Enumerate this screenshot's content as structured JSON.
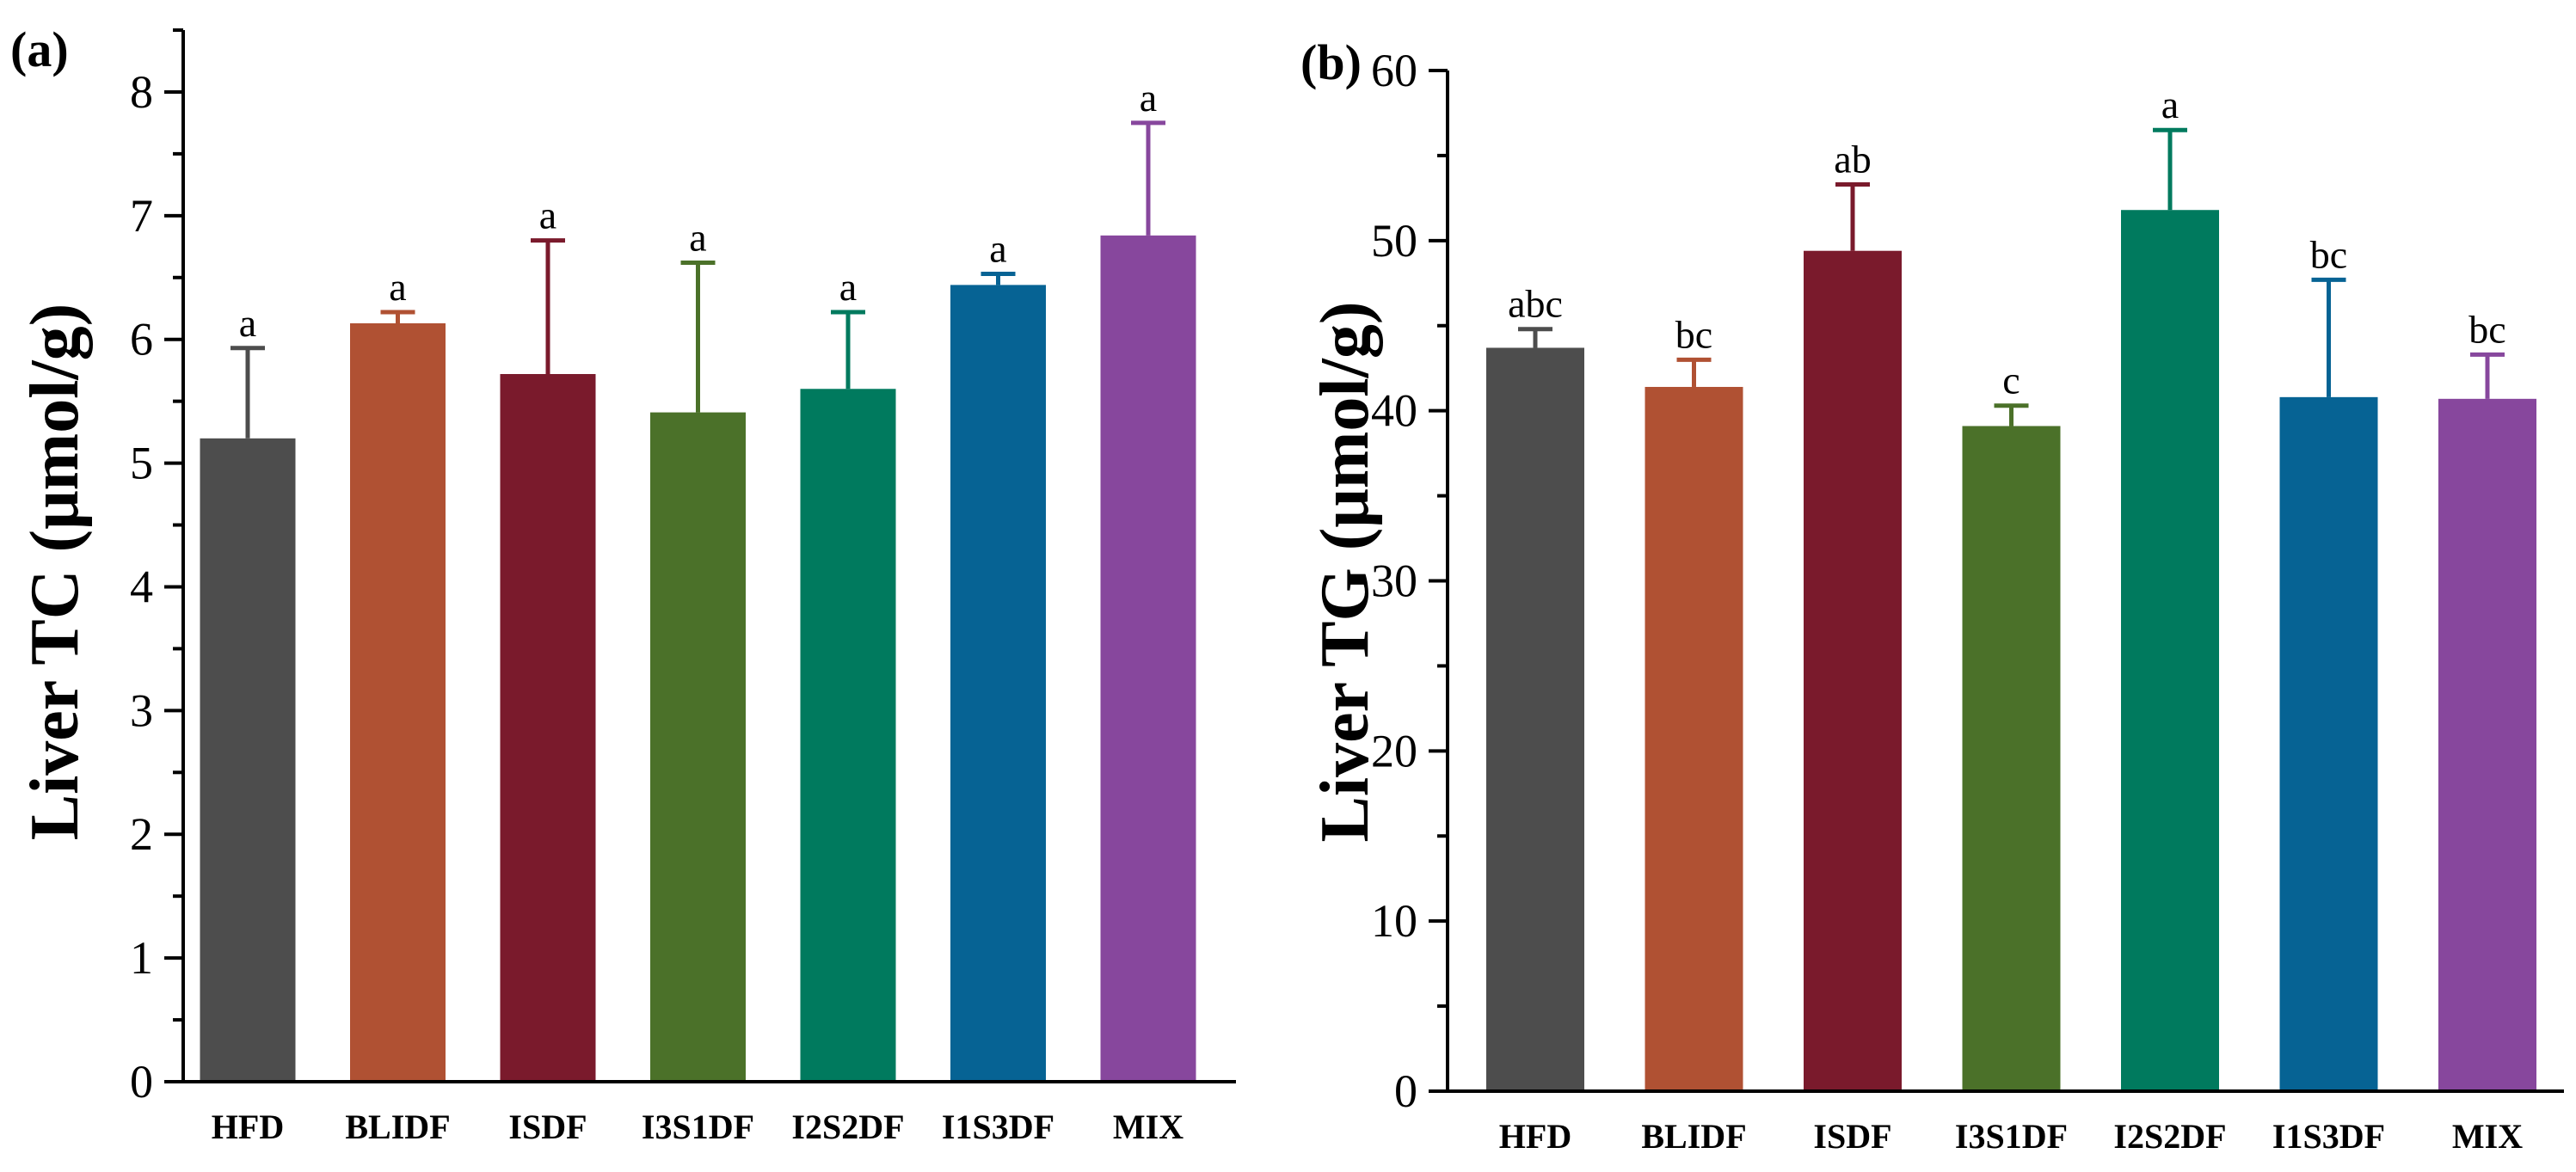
{
  "chart_data": [
    {
      "panel_label": "(a)",
      "type": "bar",
      "title": "",
      "xlabel": "",
      "ylabel": "Liver TC (μmol/g)",
      "ylim": [
        0,
        8.5
      ],
      "yticks": [
        "0",
        "1",
        "2",
        "3",
        "4",
        "5",
        "6",
        "7",
        "8"
      ],
      "grid": false,
      "categories": [
        "HFD",
        "BLIDF",
        "ISDF",
        "I3S1DF",
        "I2S2DF",
        "I1S3DF",
        "MIX"
      ],
      "values": [
        5.2,
        6.13,
        5.72,
        5.41,
        5.6,
        6.44,
        6.84
      ],
      "error_upper": [
        0.73,
        0.09,
        1.08,
        1.21,
        0.62,
        0.09,
        0.91
      ],
      "significance": [
        "a",
        "a",
        "a",
        "a",
        "a",
        "a",
        "a"
      ],
      "colors": [
        "#4d4d4d",
        "#b05133",
        "#7a1a2c",
        "#4b7129",
        "#007a5e",
        "#066394",
        "#87479d"
      ]
    },
    {
      "panel_label": "(b)",
      "type": "bar",
      "title": "",
      "xlabel": "",
      "ylabel": "Liver TG (μmol/g)",
      "ylim": [
        0,
        60
      ],
      "yticks": [
        "0",
        "10",
        "20",
        "30",
        "40",
        "50",
        "60"
      ],
      "grid": false,
      "categories": [
        "HFD",
        "BLIDF",
        "ISDF",
        "I3S1DF",
        "I2S2DF",
        "I1S3DF",
        "MIX"
      ],
      "values": [
        43.7,
        41.4,
        49.4,
        39.1,
        51.8,
        40.8,
        40.7
      ],
      "error_upper": [
        1.1,
        1.6,
        3.9,
        1.2,
        4.7,
        6.9,
        2.6
      ],
      "significance": [
        "abc",
        "bc",
        "ab",
        "c",
        "a",
        "bc",
        "bc"
      ],
      "colors": [
        "#4d4d4d",
        "#b05133",
        "#7a1a2c",
        "#4b7129",
        "#007a5e",
        "#066394",
        "#87479d"
      ]
    }
  ]
}
